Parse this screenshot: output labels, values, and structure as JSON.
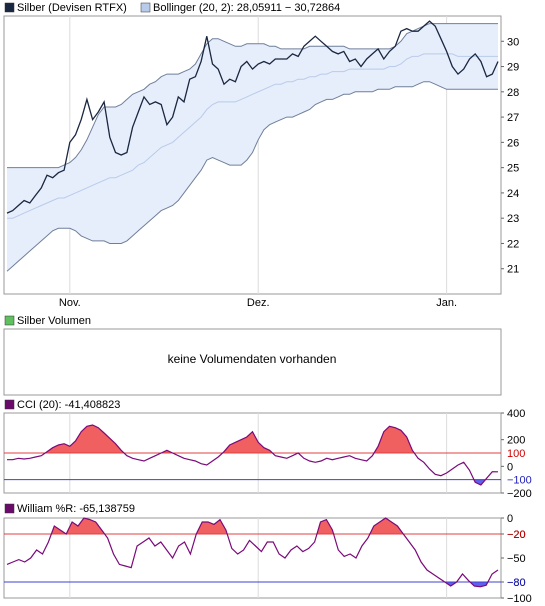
{
  "colors": {
    "price_line": "#1a2740",
    "band_fill": "#e6eefb",
    "band_line": "#6f7f9a",
    "mid_line": "#b8cbea",
    "cci_fill": "#f06060",
    "cci_line": "#7a0a7a",
    "low_fill": "#6060f0",
    "red_level": "#e04040",
    "blue_level": "#4040d0",
    "grid": "#dcdcdc",
    "frame": "#999999"
  },
  "legend": {
    "price_label": "Silber (Devisen RTFX)",
    "bollinger_label": "Bollinger (20, 2): 28,05911 − 30,72864",
    "volume_label": "Silber Volumen",
    "volume_message": "keine Volumendaten vorhanden",
    "cci_label": "CCI (20): -41,408823",
    "williams_label": "William %R: -65,138759"
  },
  "chart_data": [
    {
      "type": "line",
      "title": "Silber (Devisen RTFX)",
      "x_tick_labels": [
        "Nov.",
        "Dez.",
        "Jan."
      ],
      "x_tick_index": [
        11,
        44,
        77
      ],
      "ylim": [
        20,
        31
      ],
      "y_ticks": [
        21,
        22,
        23,
        24,
        25,
        26,
        27,
        28,
        29,
        30
      ],
      "grid": true,
      "series": [
        {
          "name": "Silber (Devisen RTFX)",
          "values": [
            23.2,
            23.3,
            23.5,
            23.7,
            23.6,
            23.9,
            24.2,
            24.7,
            24.6,
            24.8,
            24.9,
            26.0,
            26.3,
            26.9,
            27.7,
            26.9,
            27.2,
            27.6,
            26.2,
            25.6,
            25.5,
            25.6,
            26.6,
            27.2,
            27.8,
            27.5,
            27.6,
            27.5,
            26.7,
            27.0,
            27.8,
            27.6,
            28.5,
            28.6,
            29.2,
            30.2,
            29.1,
            28.9,
            28.3,
            28.5,
            28.4,
            29.0,
            29.2,
            28.9,
            29.1,
            29.2,
            29.1,
            29.3,
            29.3,
            29.3,
            29.5,
            29.4,
            29.8,
            30.0,
            30.2,
            30.0,
            29.8,
            29.6,
            29.5,
            29.6,
            29.2,
            29.3,
            29.0,
            29.3,
            29.5,
            29.7,
            29.3,
            29.6,
            29.8,
            30.4,
            30.5,
            30.4,
            30.4,
            30.6,
            30.8,
            30.6,
            30.1,
            29.6,
            29.0,
            28.7,
            28.9,
            29.3,
            29.5,
            29.2,
            28.6,
            28.7,
            29.2
          ]
        },
        {
          "name": "Bollinger upper",
          "values": [
            25.0,
            25.0,
            25.0,
            25.0,
            25.0,
            25.0,
            25.0,
            25.0,
            25.0,
            25.0,
            25.1,
            25.2,
            25.4,
            25.7,
            26.1,
            26.6,
            27.1,
            27.4,
            27.4,
            27.4,
            27.5,
            27.7,
            27.9,
            28.0,
            28.1,
            28.3,
            28.4,
            28.6,
            28.7,
            28.7,
            28.7,
            28.8,
            28.9,
            29.1,
            29.5,
            29.9,
            30.1,
            30.1,
            30.0,
            29.9,
            29.8,
            29.8,
            29.9,
            29.9,
            29.9,
            29.9,
            29.8,
            29.8,
            29.7,
            29.7,
            29.7,
            29.7,
            29.7,
            29.8,
            29.8,
            29.8,
            29.8,
            29.8,
            29.8,
            29.8,
            29.7,
            29.7,
            29.7,
            29.7,
            29.7,
            29.7,
            29.7,
            29.7,
            29.8,
            30.0,
            30.3,
            30.4,
            30.5,
            30.6,
            30.7,
            30.7,
            30.7,
            30.7,
            30.7,
            30.7,
            30.7,
            30.7,
            30.7,
            30.7,
            30.7,
            30.7,
            30.7
          ]
        },
        {
          "name": "Bollinger lower",
          "values": [
            20.9,
            21.1,
            21.3,
            21.5,
            21.7,
            21.9,
            22.1,
            22.3,
            22.5,
            22.6,
            22.6,
            22.6,
            22.5,
            22.3,
            22.2,
            22.1,
            22.1,
            22.1,
            22.0,
            22.0,
            22.0,
            22.1,
            22.3,
            22.5,
            22.7,
            22.9,
            23.1,
            23.3,
            23.4,
            23.5,
            23.7,
            24.0,
            24.3,
            24.6,
            24.9,
            25.3,
            25.4,
            25.3,
            25.2,
            25.1,
            25.1,
            25.1,
            25.3,
            25.6,
            26.1,
            26.5,
            26.7,
            26.8,
            26.9,
            27.0,
            27.0,
            27.1,
            27.2,
            27.3,
            27.5,
            27.6,
            27.7,
            27.7,
            27.8,
            27.9,
            27.9,
            28.0,
            28.0,
            28.0,
            28.0,
            28.1,
            28.1,
            28.1,
            28.2,
            28.2,
            28.2,
            28.2,
            28.3,
            28.4,
            28.4,
            28.3,
            28.2,
            28.1,
            28.1,
            28.1,
            28.1,
            28.1,
            28.1,
            28.1,
            28.1,
            28.1,
            28.1
          ]
        },
        {
          "name": "Bollinger middle",
          "values": [
            23.0,
            23.0,
            23.1,
            23.2,
            23.3,
            23.4,
            23.5,
            23.6,
            23.7,
            23.8,
            23.8,
            23.9,
            24.0,
            24.1,
            24.2,
            24.3,
            24.4,
            24.5,
            24.6,
            24.6,
            24.7,
            24.8,
            24.9,
            25.1,
            25.2,
            25.4,
            25.6,
            25.8,
            25.9,
            26.0,
            26.2,
            26.4,
            26.6,
            26.8,
            27.0,
            27.3,
            27.5,
            27.6,
            27.6,
            27.6,
            27.6,
            27.7,
            27.8,
            27.9,
            28.0,
            28.1,
            28.2,
            28.3,
            28.3,
            28.4,
            28.4,
            28.5,
            28.5,
            28.6,
            28.6,
            28.7,
            28.7,
            28.8,
            28.8,
            28.8,
            28.9,
            28.9,
            28.9,
            28.9,
            28.9,
            28.9,
            28.9,
            29.0,
            29.0,
            29.1,
            29.3,
            29.4,
            29.4,
            29.5,
            29.5,
            29.5,
            29.5,
            29.5,
            29.5,
            29.4,
            29.4,
            29.4,
            29.4,
            29.4,
            29.4,
            29.4,
            29.4
          ]
        }
      ]
    },
    {
      "type": "area",
      "title": "CCI (20): -41,408823",
      "ylim": [
        -200,
        400
      ],
      "y_ticks": [
        400,
        200,
        0,
        -200
      ],
      "levels": [
        100,
        -100
      ],
      "grid": true,
      "series": [
        {
          "name": "CCI (20)",
          "values": [
            50,
            50,
            60,
            55,
            60,
            70,
            80,
            110,
            140,
            160,
            170,
            150,
            190,
            260,
            300,
            310,
            290,
            250,
            210,
            170,
            120,
            80,
            60,
            50,
            40,
            60,
            80,
            100,
            120,
            100,
            80,
            60,
            50,
            40,
            20,
            10,
            40,
            70,
            110,
            160,
            180,
            200,
            220,
            260,
            180,
            140,
            120,
            80,
            70,
            60,
            80,
            100,
            60,
            40,
            30,
            40,
            60,
            50,
            60,
            70,
            80,
            60,
            50,
            40,
            80,
            150,
            260,
            300,
            290,
            270,
            220,
            120,
            60,
            30,
            -20,
            -60,
            -70,
            -50,
            -20,
            10,
            30,
            -30,
            -120,
            -140,
            -90,
            -40,
            -41
          ]
        }
      ]
    },
    {
      "type": "area",
      "title": "William %R: -65,138759",
      "ylim": [
        -100,
        0
      ],
      "y_ticks": [
        0,
        -20,
        -50,
        -80,
        -100
      ],
      "levels": [
        -20,
        -80
      ],
      "grid": true,
      "series": [
        {
          "name": "William %R",
          "values": [
            -58,
            -55,
            -52,
            -55,
            -50,
            -40,
            -45,
            -30,
            -10,
            -15,
            -20,
            -5,
            -10,
            0,
            -2,
            -5,
            -15,
            -25,
            -45,
            -58,
            -60,
            -62,
            -35,
            -30,
            -25,
            -35,
            -30,
            -40,
            -50,
            -35,
            -30,
            -45,
            -20,
            -5,
            -5,
            -8,
            -2,
            -15,
            -38,
            -45,
            -40,
            -28,
            -35,
            -42,
            -30,
            -30,
            -45,
            -50,
            -40,
            -35,
            -42,
            -38,
            -30,
            -5,
            -2,
            -15,
            -40,
            -48,
            -45,
            -50,
            -35,
            -25,
            -10,
            -5,
            0,
            -5,
            -10,
            -20,
            -30,
            -40,
            -55,
            -65,
            -70,
            -75,
            -80,
            -85,
            -80,
            -70,
            -78,
            -85,
            -86,
            -84,
            -70,
            -65
          ]
        }
      ]
    }
  ]
}
